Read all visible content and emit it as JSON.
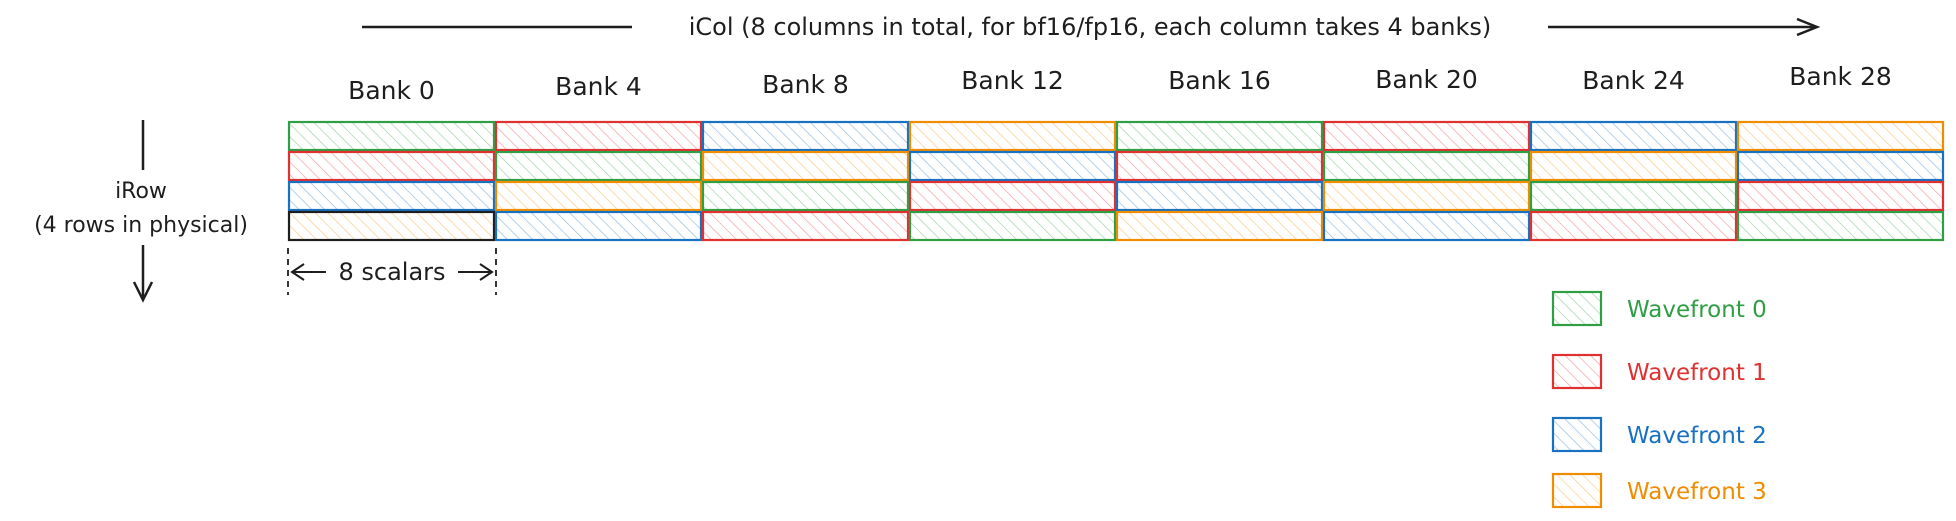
{
  "top_arrow": {
    "label": "iCol (8 columns in total, for bf16/fp16, each column takes 4 banks)"
  },
  "left_axis": {
    "label_line1": "iRow",
    "label_line2": "(4 rows in physical)"
  },
  "width_marker": {
    "label": "8 scalars"
  },
  "banks": [
    "Bank 0",
    "Bank 4",
    "Bank 8",
    "Bank 12",
    "Bank 16",
    "Bank 20",
    "Bank 24",
    "Bank 28"
  ],
  "grid": {
    "rows": [
      [
        0,
        1,
        2,
        3,
        0,
        1,
        2,
        3
      ],
      [
        1,
        0,
        3,
        2,
        1,
        0,
        3,
        2
      ],
      [
        2,
        3,
        0,
        1,
        2,
        3,
        0,
        1
      ],
      [
        3,
        2,
        1,
        0,
        3,
        2,
        1,
        0
      ]
    ],
    "row3_col0_border": "#1e1e1e"
  },
  "legend": [
    {
      "label": "Wavefront 0",
      "color": "#2f9e44"
    },
    {
      "label": "Wavefront 1",
      "color": "#e03131"
    },
    {
      "label": "Wavefront 2",
      "color": "#1971c2"
    },
    {
      "label": "Wavefront 3",
      "color": "#f08c00"
    }
  ]
}
